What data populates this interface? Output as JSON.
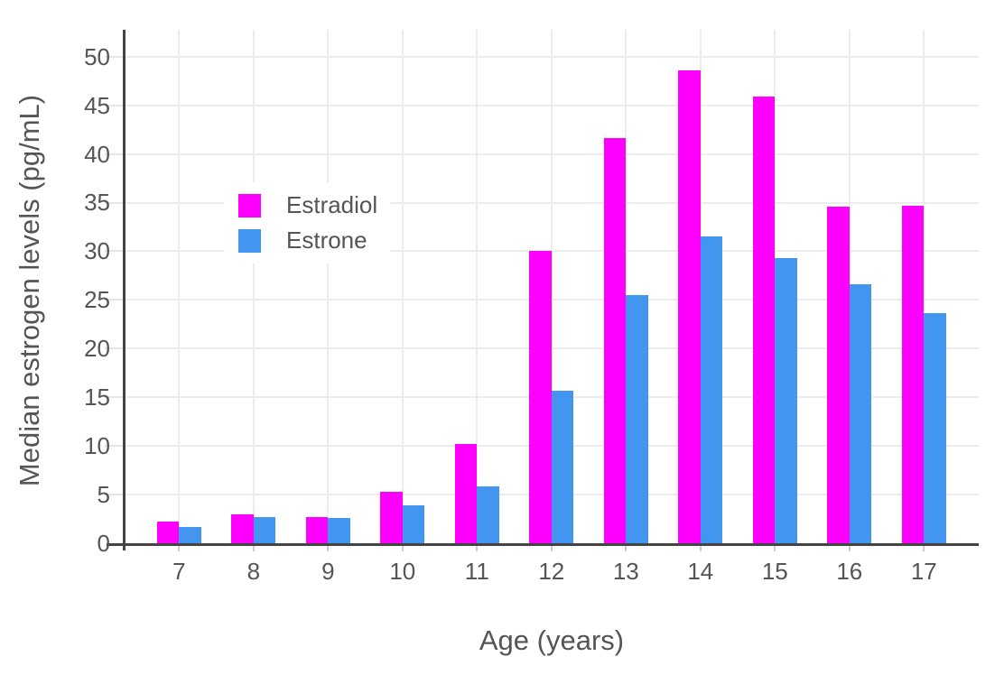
{
  "chart_data": {
    "type": "bar",
    "title": "",
    "xlabel": "Age (years)",
    "ylabel": "Median estrogen levels (pg/mL)",
    "categories": [
      "7",
      "8",
      "9",
      "10",
      "11",
      "12",
      "13",
      "14",
      "15",
      "16",
      "17"
    ],
    "series": [
      {
        "name": "Estradiol",
        "color": "#FF00FF",
        "values": [
          2.2,
          3.0,
          2.7,
          5.3,
          10.2,
          30.0,
          41.6,
          48.6,
          45.9,
          34.6,
          34.7
        ]
      },
      {
        "name": "Estrone",
        "color": "#4296F0",
        "values": [
          1.7,
          2.7,
          2.6,
          3.9,
          5.8,
          15.7,
          25.5,
          31.5,
          29.3,
          26.6,
          23.6
        ]
      }
    ],
    "ylim": [
      0,
      52.8
    ],
    "yticks": [
      0,
      5,
      10,
      15,
      20,
      25,
      30,
      35,
      40,
      45,
      50
    ],
    "grid": true,
    "legend_position": "inside-top-left",
    "colors": {
      "background": "#FFFFFF",
      "grid": "#ECECEC",
      "axis_line": "#444444",
      "text": "#555555"
    }
  }
}
